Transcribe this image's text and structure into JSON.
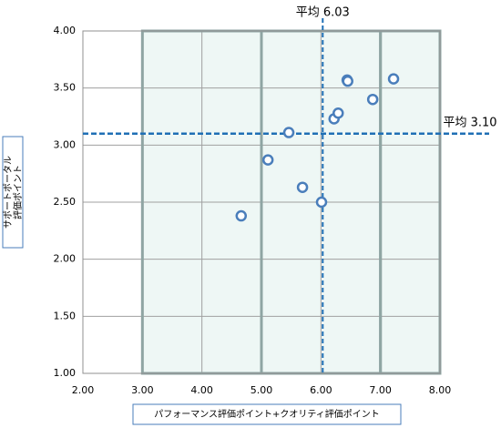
{
  "chart_data": {
    "type": "scatter",
    "x_label": "パフォーマンス評価ポイント+クオリティ評価ポイント",
    "y_label": [
      "サポートポータル",
      "評価ポイント"
    ],
    "x": [
      4.66,
      5.11,
      5.46,
      5.69,
      6.01,
      6.22,
      6.29,
      6.44,
      6.45,
      6.87,
      7.22
    ],
    "values": [
      2.38,
      2.87,
      3.11,
      2.63,
      2.5,
      3.23,
      3.28,
      3.57,
      3.56,
      3.4,
      3.58
    ],
    "color": "#4a7ebb",
    "xlim": [
      2,
      8
    ],
    "ylim": [
      1,
      4
    ],
    "xticks": [
      {
        "value": 2,
        "label": "2.00"
      },
      {
        "value": 3,
        "label": "3.00"
      },
      {
        "value": 4,
        "label": "4.00"
      },
      {
        "value": 5,
        "label": "5.00"
      },
      {
        "value": 6,
        "label": "6.00"
      },
      {
        "value": 7,
        "label": "7.00"
      },
      {
        "value": 8,
        "label": "8.00"
      }
    ],
    "yticks": [
      {
        "value": 1,
        "label": "1.00"
      },
      {
        "value": 1.5,
        "label": "1.50"
      },
      {
        "value": 2,
        "label": "2.00"
      },
      {
        "value": 2.5,
        "label": "2.50"
      },
      {
        "value": 3,
        "label": "3.00"
      },
      {
        "value": 3.5,
        "label": "3.50"
      },
      {
        "value": 4,
        "label": "4.00"
      }
    ],
    "grid": true,
    "zones": [
      {
        "from": 3,
        "to": 5
      },
      {
        "from": 5,
        "to": 7
      },
      {
        "from": 7,
        "to": 8
      }
    ],
    "mean_x": {
      "value": 6.03,
      "label": "平均 6.03"
    },
    "mean_y": {
      "value": 3.1,
      "label": "平均 3.10"
    }
  }
}
